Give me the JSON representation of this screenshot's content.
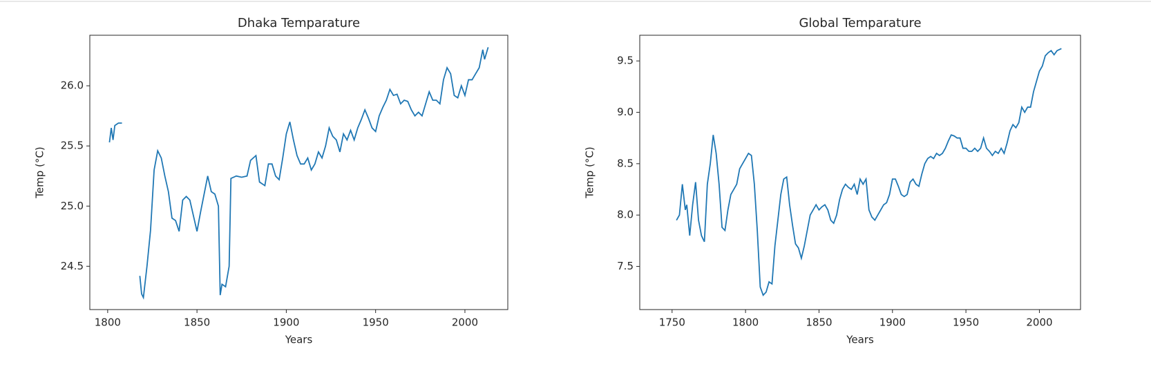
{
  "chart_data": [
    {
      "type": "line",
      "title": "Dhaka Temparature",
      "xlabel": "Years",
      "ylabel": "Temp (°C)",
      "x": [
        1801,
        1802,
        1803,
        1804,
        1806,
        1808,
        1812,
        1818,
        1819,
        1820,
        1822,
        1824,
        1826,
        1828,
        1830,
        1832,
        1834,
        1836,
        1838,
        1840,
        1842,
        1844,
        1846,
        1848,
        1850,
        1852,
        1854,
        1856,
        1858,
        1860,
        1862,
        1863,
        1864,
        1866,
        1868,
        1869,
        1872,
        1875,
        1878,
        1880,
        1883,
        1885,
        1888,
        1890,
        1892,
        1894,
        1896,
        1898,
        1900,
        1902,
        1904,
        1906,
        1908,
        1910,
        1912,
        1914,
        1916,
        1918,
        1920,
        1922,
        1924,
        1926,
        1928,
        1930,
        1932,
        1934,
        1936,
        1938,
        1940,
        1942,
        1944,
        1946,
        1948,
        1950,
        1952,
        1954,
        1956,
        1958,
        1960,
        1962,
        1964,
        1966,
        1968,
        1970,
        1972,
        1974,
        1976,
        1978,
        1980,
        1982,
        1984,
        1986,
        1988,
        1990,
        1992,
        1994,
        1996,
        1998,
        2000,
        2002,
        2004,
        2006,
        2008,
        2010,
        2011,
        2013
      ],
      "series": [
        {
          "color": "#1f77b4",
          "values": [
            25.53,
            25.65,
            25.55,
            25.67,
            25.69,
            25.69,
            null,
            24.42,
            24.27,
            24.24,
            24.5,
            24.8,
            25.3,
            25.46,
            25.4,
            25.25,
            25.12,
            24.9,
            24.88,
            24.79,
            25.05,
            25.08,
            25.05,
            24.92,
            24.79,
            24.95,
            25.1,
            25.25,
            25.12,
            25.1,
            25.0,
            24.26,
            24.35,
            24.33,
            24.5,
            25.23,
            25.25,
            25.24,
            25.25,
            25.38,
            25.42,
            25.2,
            25.17,
            25.35,
            25.35,
            25.25,
            25.22,
            25.4,
            25.6,
            25.7,
            25.55,
            25.42,
            25.35,
            25.35,
            25.4,
            25.3,
            25.35,
            25.45,
            25.4,
            25.5,
            25.65,
            25.58,
            25.55,
            25.45,
            25.6,
            25.55,
            25.63,
            25.55,
            25.65,
            25.72,
            25.8,
            25.73,
            25.65,
            25.62,
            25.75,
            25.82,
            25.88,
            25.97,
            25.92,
            25.93,
            25.85,
            25.88,
            25.87,
            25.8,
            25.75,
            25.78,
            25.75,
            25.85,
            25.95,
            25.88,
            25.88,
            25.85,
            26.05,
            26.15,
            26.1,
            25.92,
            25.9,
            26.0,
            25.92,
            26.05,
            26.05,
            26.1,
            26.15,
            26.3,
            26.22,
            26.32
          ]
        }
      ],
      "xlim": [
        1790,
        2024
      ],
      "ylim": [
        24.14,
        26.42
      ],
      "xticks": [
        1800,
        1850,
        1900,
        1950,
        2000
      ],
      "yticks": [
        24.5,
        {
          "value": 25,
          "label": "25.0"
        },
        25.5,
        {
          "value": 26,
          "label": "26.0"
        }
      ]
    },
    {
      "type": "line",
      "title": "Global Temparature",
      "xlabel": "Years",
      "ylabel": "Temp (°C)",
      "x": [
        1753,
        1755,
        1757,
        1759,
        1760,
        1762,
        1764,
        1766,
        1768,
        1770,
        1772,
        1774,
        1776,
        1778,
        1780,
        1782,
        1784,
        1786,
        1788,
        1790,
        1792,
        1794,
        1796,
        1798,
        1800,
        1802,
        1804,
        1806,
        1808,
        1810,
        1812,
        1814,
        1816,
        1818,
        1820,
        1822,
        1824,
        1826,
        1828,
        1830,
        1832,
        1834,
        1836,
        1838,
        1840,
        1842,
        1844,
        1846,
        1848,
        1850,
        1852,
        1854,
        1856,
        1858,
        1860,
        1862,
        1864,
        1866,
        1868,
        1870,
        1872,
        1874,
        1876,
        1878,
        1880,
        1882,
        1884,
        1886,
        1888,
        1890,
        1892,
        1894,
        1896,
        1898,
        1900,
        1902,
        1904,
        1906,
        1908,
        1910,
        1912,
        1914,
        1916,
        1918,
        1920,
        1922,
        1924,
        1926,
        1928,
        1930,
        1932,
        1934,
        1936,
        1938,
        1940,
        1942,
        1944,
        1946,
        1948,
        1950,
        1952,
        1954,
        1956,
        1958,
        1960,
        1962,
        1964,
        1966,
        1968,
        1970,
        1972,
        1974,
        1976,
        1978,
        1980,
        1982,
        1984,
        1986,
        1988,
        1990,
        1992,
        1994,
        1996,
        1998,
        2000,
        2002,
        2004,
        2006,
        2008,
        2010,
        2012,
        2015
      ],
      "series": [
        {
          "color": "#1f77b4",
          "values": [
            7.95,
            8.0,
            8.3,
            8.05,
            8.1,
            7.8,
            8.1,
            8.32,
            7.95,
            7.8,
            7.74,
            8.3,
            8.5,
            8.78,
            8.6,
            8.3,
            7.88,
            7.85,
            8.05,
            8.2,
            8.25,
            8.3,
            8.45,
            8.5,
            8.55,
            8.6,
            8.58,
            8.3,
            7.85,
            7.3,
            7.22,
            7.25,
            7.35,
            7.33,
            7.7,
            7.95,
            8.2,
            8.35,
            8.37,
            8.1,
            7.9,
            7.72,
            7.68,
            7.58,
            7.7,
            7.85,
            8.0,
            8.05,
            8.1,
            8.05,
            8.08,
            8.1,
            8.05,
            7.95,
            7.92,
            8.0,
            8.15,
            8.25,
            8.3,
            8.27,
            8.25,
            8.3,
            8.2,
            8.35,
            8.3,
            8.35,
            8.05,
            7.98,
            7.95,
            8.0,
            8.05,
            8.1,
            8.12,
            8.2,
            8.35,
            8.35,
            8.28,
            8.2,
            8.18,
            8.2,
            8.32,
            8.35,
            8.3,
            8.28,
            8.4,
            8.5,
            8.55,
            8.57,
            8.55,
            8.6,
            8.58,
            8.6,
            8.65,
            8.72,
            8.78,
            8.77,
            8.75,
            8.75,
            8.65,
            8.65,
            8.62,
            8.62,
            8.65,
            8.62,
            8.65,
            8.75,
            8.65,
            8.62,
            8.58,
            8.62,
            8.6,
            8.65,
            8.6,
            8.7,
            8.82,
            8.88,
            8.85,
            8.9,
            9.05,
            9.0,
            9.05,
            9.05,
            9.2,
            9.3,
            9.4,
            9.45,
            9.55,
            9.58,
            9.6,
            9.56,
            9.6,
            9.62
          ]
        }
      ],
      "xlim": [
        1728,
        2028
      ],
      "ylim": [
        7.08,
        9.75
      ],
      "xticks": [
        1750,
        1800,
        1850,
        1900,
        1950,
        2000
      ],
      "yticks": [
        7.5,
        {
          "value": 8,
          "label": "8.0"
        },
        8.5,
        {
          "value": 9,
          "label": "9.0"
        },
        9.5
      ]
    }
  ]
}
